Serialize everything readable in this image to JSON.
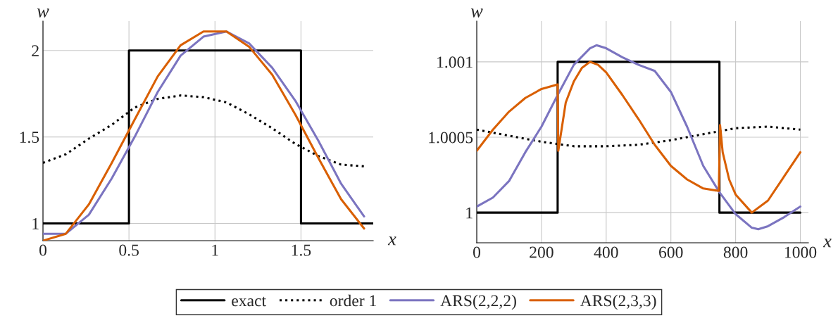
{
  "chart_data": [
    {
      "type": "line",
      "xlabel": "x",
      "ylabel": "w",
      "xlim": [
        0,
        1.92
      ],
      "ylim": [
        0.9,
        2.17
      ],
      "xticks": [
        0,
        0.5,
        1,
        1.5
      ],
      "yticks": [
        1,
        1.5,
        2
      ],
      "grid": true,
      "legend": "bottom",
      "series": [
        {
          "name": "exact",
          "color": "#000000",
          "line_style": "solid",
          "x": [
            0,
            0.5,
            0.5,
            1.5,
            1.5,
            1.92
          ],
          "values": [
            1,
            1,
            2,
            2,
            1,
            1
          ]
        },
        {
          "name": "order 1",
          "color": "#000000",
          "line_style": "dotted",
          "x": [
            0,
            0.133,
            0.267,
            0.4,
            0.533,
            0.667,
            0.8,
            0.933,
            1.067,
            1.2,
            1.333,
            1.467,
            1.6,
            1.733,
            1.867
          ],
          "values": [
            1.35,
            1.4,
            1.49,
            1.57,
            1.67,
            1.72,
            1.74,
            1.73,
            1.7,
            1.63,
            1.55,
            1.46,
            1.39,
            1.34,
            1.33
          ]
        },
        {
          "name": "ARS(2,2,2)",
          "color": "#7b74c0",
          "line_style": "solid",
          "x": [
            0,
            0.133,
            0.267,
            0.4,
            0.533,
            0.667,
            0.8,
            0.933,
            1.067,
            1.2,
            1.333,
            1.467,
            1.6,
            1.733,
            1.867
          ],
          "values": [
            0.94,
            0.94,
            1.05,
            1.26,
            1.5,
            1.76,
            1.97,
            2.08,
            2.11,
            2.04,
            1.9,
            1.71,
            1.48,
            1.23,
            1.04
          ]
        },
        {
          "name": "ARS(2,3,3)",
          "color": "#d95f02",
          "line_style": "solid",
          "x": [
            0,
            0.133,
            0.267,
            0.4,
            0.533,
            0.667,
            0.8,
            0.933,
            1.067,
            1.2,
            1.333,
            1.467,
            1.6,
            1.733,
            1.867
          ],
          "values": [
            0.9,
            0.94,
            1.11,
            1.35,
            1.6,
            1.85,
            2.03,
            2.11,
            2.11,
            2.02,
            1.86,
            1.63,
            1.38,
            1.14,
            0.97
          ]
        }
      ]
    },
    {
      "type": "line",
      "xlabel": "x",
      "ylabel": "w",
      "xlim": [
        0,
        1025
      ],
      "ylim": [
        0.9998,
        1.00127
      ],
      "xticks": [
        0,
        200,
        400,
        600,
        800,
        1000
      ],
      "yticks": [
        1,
        1.0005,
        1.001
      ],
      "grid": true,
      "series": [
        {
          "name": "exact",
          "color": "#000000",
          "line_style": "solid",
          "x": [
            0,
            250,
            250,
            750,
            750,
            1000
          ],
          "values": [
            1,
            1,
            1.001,
            1.001,
            1,
            1
          ]
        },
        {
          "name": "order 1",
          "color": "#000000",
          "line_style": "dotted",
          "x": [
            0,
            100,
            200,
            300,
            400,
            500,
            600,
            700,
            800,
            900,
            1000
          ],
          "values": [
            1.00055,
            1.00051,
            1.00047,
            1.00044,
            1.00044,
            1.00045,
            1.00048,
            1.00052,
            1.00056,
            1.00057,
            1.00055
          ]
        },
        {
          "name": "ARS(2,2,2)",
          "color": "#7b74c0",
          "line_style": "solid",
          "x": [
            0,
            50,
            100,
            150,
            200,
            250,
            300,
            350,
            370,
            400,
            450,
            500,
            550,
            600,
            650,
            700,
            750,
            800,
            850,
            870,
            900,
            950,
            1000
          ],
          "values": [
            1.00004,
            1.0001,
            1.00021,
            1.0004,
            1.00057,
            1.00078,
            1.00098,
            1.00109,
            1.00111,
            1.00109,
            1.00103,
            1.00098,
            1.00094,
            1.0008,
            1.00057,
            1.00031,
            1.000135,
            0.99999,
            0.9999,
            0.99989,
            0.99991,
            0.99997,
            1.00004
          ]
        },
        {
          "name": "ARS(2,3,3)",
          "color": "#d95f02",
          "line_style": "solid",
          "x": [
            0,
            50,
            100,
            150,
            200,
            250,
            252,
            275,
            300,
            325,
            350,
            375,
            400,
            450,
            500,
            550,
            600,
            650,
            700,
            748,
            752,
            760,
            780,
            800,
            850,
            900,
            950,
            1000
          ],
          "values": [
            1.00041,
            1.00055,
            1.00067,
            1.00076,
            1.00082,
            1.00085,
            1.00041,
            1.00073,
            1.00087,
            1.00096,
            1.001,
            1.00098,
            1.00093,
            1.00078,
            1.00062,
            1.00045,
            1.00031,
            1.00022,
            1.00016,
            1.000144,
            1.00058,
            1.0004,
            1.00022,
            1.00012,
            1.0,
            1.00008,
            1.00024,
            1.0004
          ]
        }
      ]
    }
  ]
}
